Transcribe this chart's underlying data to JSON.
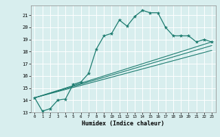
{
  "xlabel": "Humidex (Indice chaleur)",
  "ylabel": "",
  "bg_color": "#d8eeee",
  "grid_color": "#ffffff",
  "line_color": "#1a7a6e",
  "xlim": [
    -0.5,
    23.5
  ],
  "ylim": [
    13,
    21.8
  ],
  "yticks": [
    13,
    14,
    15,
    16,
    17,
    18,
    19,
    20,
    21
  ],
  "xticks": [
    0,
    1,
    2,
    3,
    4,
    5,
    6,
    7,
    8,
    9,
    10,
    11,
    12,
    13,
    14,
    15,
    16,
    17,
    18,
    19,
    20,
    21,
    22,
    23
  ],
  "series1_x": [
    0,
    1,
    2,
    3,
    4,
    5,
    6,
    7,
    8,
    9,
    10,
    11,
    12,
    13,
    14,
    15,
    16,
    17,
    18,
    19,
    20,
    21,
    22,
    23
  ],
  "series1_y": [
    14.2,
    13.1,
    13.3,
    14.0,
    14.1,
    15.3,
    15.5,
    16.2,
    18.2,
    19.3,
    19.5,
    20.6,
    20.1,
    20.9,
    21.4,
    21.2,
    21.2,
    20.0,
    19.3,
    19.3,
    19.3,
    18.8,
    19.0,
    18.8
  ],
  "series2_x": [
    0,
    23
  ],
  "series2_y": [
    14.2,
    18.8
  ],
  "series3_x": [
    0,
    23
  ],
  "series3_y": [
    14.2,
    18.5
  ],
  "series4_x": [
    0,
    23
  ],
  "series4_y": [
    14.2,
    18.1
  ]
}
